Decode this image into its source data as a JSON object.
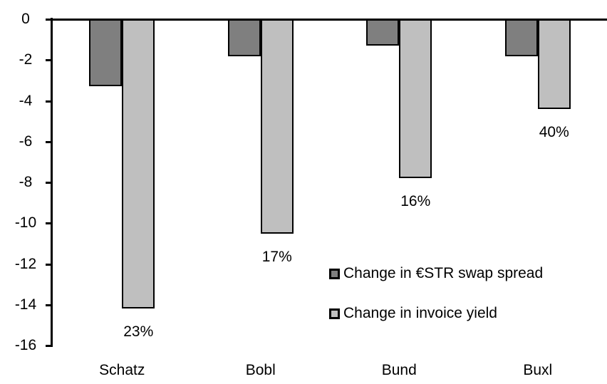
{
  "chart_data": {
    "type": "bar",
    "orientation": "vertical",
    "title": "",
    "xlabel": "",
    "ylabel": "",
    "categories": [
      "Schatz",
      "Bobl",
      "Bund",
      "Buxl"
    ],
    "series": [
      {
        "name": "Change in €STR swap spread",
        "color": "#7f7f7f",
        "values": [
          -3.3,
          -1.8,
          -1.3,
          -1.8
        ]
      },
      {
        "name": "Change in invoice yield",
        "color": "#bfbfbf",
        "values": [
          -14.2,
          -10.5,
          -7.8,
          -4.4
        ]
      }
    ],
    "bar_labels": {
      "series_index": 1,
      "values": [
        "23%",
        "17%",
        "16%",
        "40%"
      ]
    },
    "ylim": [
      -16,
      0
    ],
    "yticks": [
      0,
      -2,
      -4,
      -6,
      -8,
      -10,
      -12,
      -14,
      -16
    ],
    "ytick_labels": [
      "0",
      "-2",
      "-4",
      "-6",
      "-8",
      "-10",
      "-12",
      "-14",
      "-16"
    ],
    "grid": false,
    "legend_position": "inside-middle-right",
    "axis_color": "#000000",
    "background_color": "#ffffff"
  }
}
